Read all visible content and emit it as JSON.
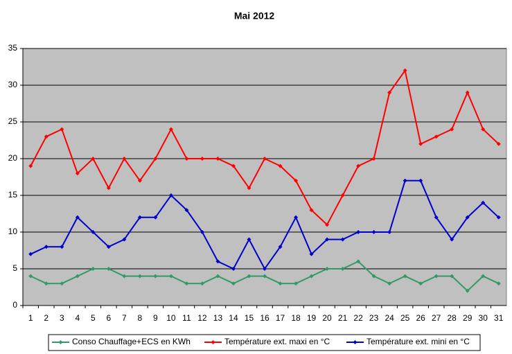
{
  "chart_data": {
    "type": "line",
    "title": "Mai 2012",
    "categories": [
      "1",
      "2",
      "3",
      "4",
      "5",
      "6",
      "7",
      "8",
      "9",
      "10",
      "11",
      "12",
      "13",
      "14",
      "15",
      "16",
      "17",
      "18",
      "19",
      "20",
      "21",
      "22",
      "23",
      "24",
      "25",
      "26",
      "27",
      "28",
      "29",
      "30",
      "31"
    ],
    "series": [
      {
        "name": "Conso Chauffage+ECS en KWh",
        "color": "#339966",
        "values": [
          4,
          3,
          3,
          4,
          5,
          5,
          4,
          4,
          4,
          4,
          3,
          3,
          4,
          3,
          4,
          4,
          3,
          3,
          4,
          5,
          5,
          6,
          4,
          3,
          4,
          3,
          4,
          4,
          2,
          4,
          3
        ]
      },
      {
        "name": "Température ext. maxi en °C",
        "color": "#ff0000",
        "values": [
          19,
          23,
          24,
          18,
          20,
          16,
          20,
          17,
          20,
          24,
          20,
          20,
          20,
          19,
          16,
          20,
          19,
          17,
          13,
          11,
          15,
          19,
          20,
          29,
          32,
          22,
          23,
          24,
          29,
          24,
          22
        ]
      },
      {
        "name": "Température ext. mini en °C",
        "color": "#0000cc",
        "values": [
          7,
          8,
          8,
          12,
          10,
          8,
          9,
          12,
          12,
          15,
          13,
          10,
          6,
          5,
          9,
          5,
          8,
          12,
          7,
          9,
          9,
          10,
          10,
          10,
          17,
          17,
          12,
          9,
          12,
          14,
          12
        ]
      }
    ],
    "ylim": [
      0,
      35
    ],
    "yticks": [
      0,
      5,
      10,
      15,
      20,
      25,
      30,
      35
    ],
    "grid": true,
    "legend": "bottom",
    "background": "#c0c0c0"
  }
}
